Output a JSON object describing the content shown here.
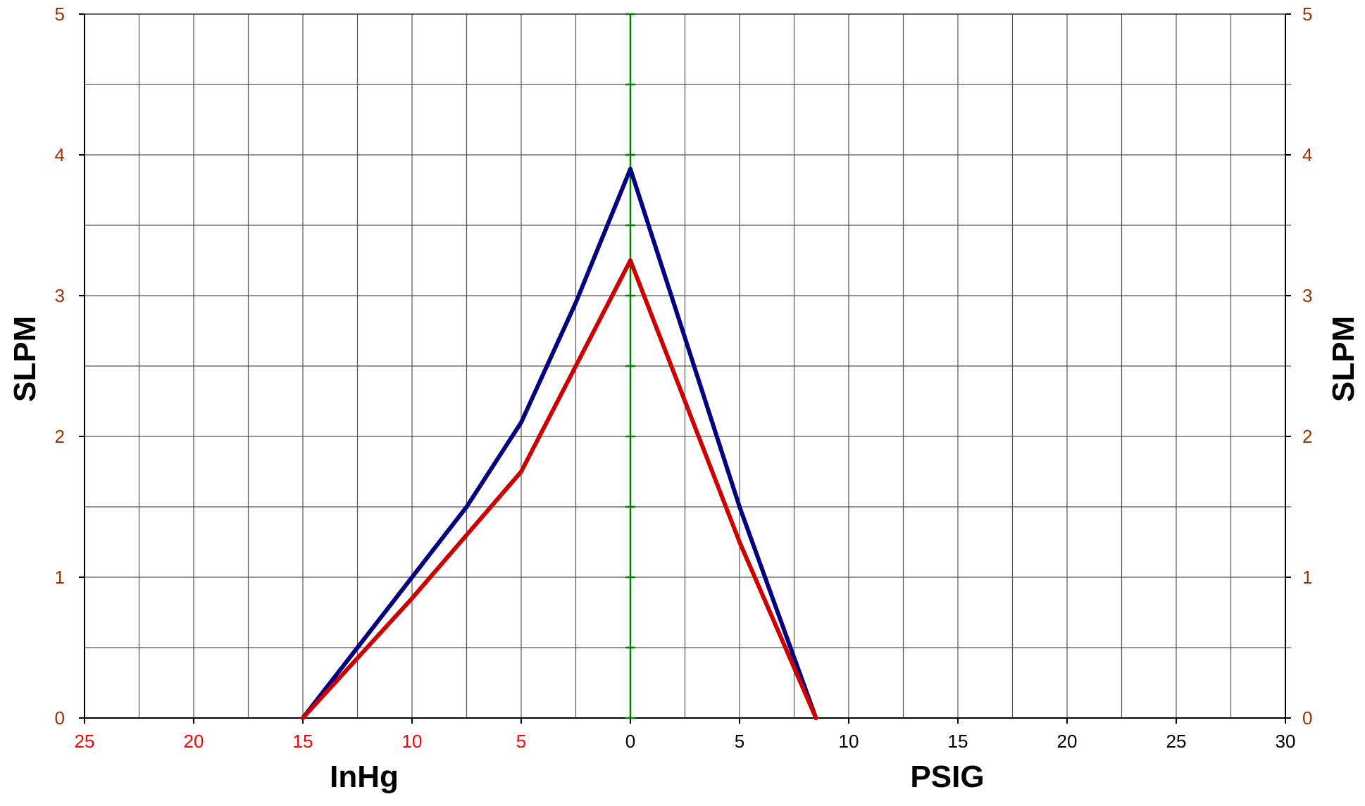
{
  "chart_data": {
    "type": "line",
    "x_axis": {
      "range": [
        -25,
        30
      ],
      "major_step": 5,
      "grid_step": 2.5,
      "tick_labels": [
        "25",
        "20",
        "15",
        "10",
        "5",
        "0",
        "5",
        "10",
        "15",
        "20",
        "25",
        "30"
      ],
      "tick_values": [
        -25,
        -20,
        -15,
        -10,
        -5,
        0,
        5,
        10,
        15,
        20,
        25,
        30
      ],
      "negative_label_color": "#ff0000",
      "positive_label_color": "#000000"
    },
    "y_axis": {
      "range": [
        0,
        5
      ],
      "major_step": 1,
      "grid_step": 0.5,
      "tick_labels": [
        "0",
        "1",
        "2",
        "3",
        "4",
        "5"
      ],
      "tick_values": [
        0,
        1,
        2,
        3,
        4,
        5
      ],
      "label_color": "#993300"
    },
    "xlabel_left": "InHg",
    "xlabel_right": "PSIG",
    "ylabel_left": "SLPM",
    "ylabel_right": "SLPM",
    "grid": true,
    "zero_line_color": "#008000",
    "gridline_color": "#555555",
    "series": [
      {
        "color": "#000080",
        "points": [
          [
            -15,
            0
          ],
          [
            -12.5,
            0.5
          ],
          [
            -10,
            1.0
          ],
          [
            -7.5,
            1.5
          ],
          [
            -5,
            2.1
          ],
          [
            -2.5,
            2.95
          ],
          [
            0,
            3.9
          ],
          [
            2.5,
            2.7
          ],
          [
            5,
            1.5
          ],
          [
            8.5,
            0
          ]
        ]
      },
      {
        "color": "#cc0000",
        "points": [
          [
            -15,
            0
          ],
          [
            -10,
            0.85
          ],
          [
            -5,
            1.75
          ],
          [
            -2.5,
            2.5
          ],
          [
            0,
            3.25
          ],
          [
            2.5,
            2.25
          ],
          [
            5,
            1.25
          ],
          [
            8.5,
            0
          ]
        ]
      }
    ]
  }
}
